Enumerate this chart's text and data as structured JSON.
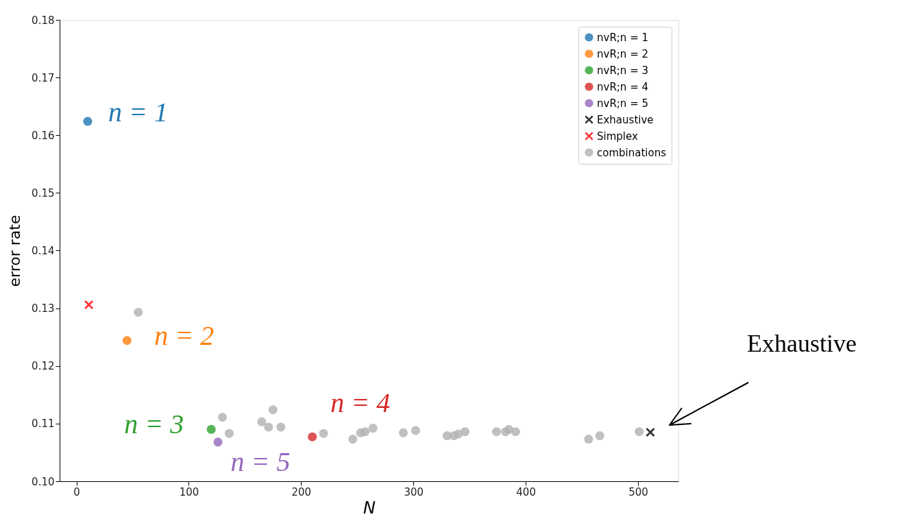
{
  "chart_data": {
    "type": "scatter",
    "xlabel": "N",
    "ylabel": "error rate",
    "xlim": [
      -15,
      536
    ],
    "ylim": [
      0.1,
      0.18
    ],
    "xticks": [
      0,
      100,
      200,
      300,
      400,
      500
    ],
    "yticks": [
      {
        "value": 0.1,
        "label": "0.10"
      },
      0.11,
      0.12,
      0.13,
      0.14,
      0.15,
      0.16,
      0.17,
      0.18
    ],
    "grid": false,
    "legend": "top right",
    "series": [
      {
        "name": "nvR;n = 1",
        "color": "#1f77b4",
        "marker": "circle",
        "x": [
          10
        ],
        "values": [
          0.1624
        ]
      },
      {
        "name": "nvR;n = 2",
        "color": "#ff7f0e",
        "marker": "circle",
        "x": [
          45
        ],
        "values": [
          0.1244
        ]
      },
      {
        "name": "nvR;n = 3",
        "color": "#2ca02c",
        "marker": "circle",
        "x": [
          120
        ],
        "values": [
          0.109
        ]
      },
      {
        "name": "nvR;n = 4",
        "color": "#d62728",
        "marker": "circle",
        "x": [
          210
        ],
        "values": [
          0.1077
        ]
      },
      {
        "name": "nvR;n = 5",
        "color": "#9467bd",
        "marker": "circle",
        "x": [
          126
        ],
        "values": [
          0.1068
        ]
      },
      {
        "name": "Exhaustive",
        "color": "#000000",
        "marker": "cross",
        "x": [
          511
        ],
        "values": [
          0.1085
        ]
      },
      {
        "name": "Simplex",
        "color": "#ff0000",
        "marker": "cross",
        "x": [
          11
        ],
        "values": [
          0.1306
        ]
      },
      {
        "name": "combinations",
        "color": "#b0b0b0",
        "marker": "circle",
        "x": [
          55,
          130,
          136,
          165,
          171,
          175,
          182,
          220,
          246,
          253,
          257,
          264,
          291,
          302,
          330,
          336,
          340,
          346,
          374,
          382,
          385,
          391,
          456,
          466,
          501
        ],
        "values": [
          0.1293,
          0.1111,
          0.1083,
          0.1103,
          0.1094,
          0.1124,
          0.1094,
          0.1083,
          0.1073,
          0.1084,
          0.1086,
          0.1092,
          0.1084,
          0.1088,
          0.1079,
          0.1079,
          0.1082,
          0.1086,
          0.1086,
          0.1086,
          0.109,
          0.1086,
          0.1073,
          0.1079,
          0.1086
        ]
      }
    ],
    "annotations": [
      {
        "text": "n = 1",
        "x": 10,
        "y": 0.1624
      },
      {
        "text": "n = 2",
        "x": 45,
        "y": 0.1244
      },
      {
        "text": "n = 3",
        "x": 120,
        "y": 0.109
      },
      {
        "text": "n = 4",
        "x": 210,
        "y": 0.1077
      },
      {
        "text": "n = 5",
        "x": 126,
        "y": 0.1068
      },
      "Exhaustive"
    ]
  }
}
